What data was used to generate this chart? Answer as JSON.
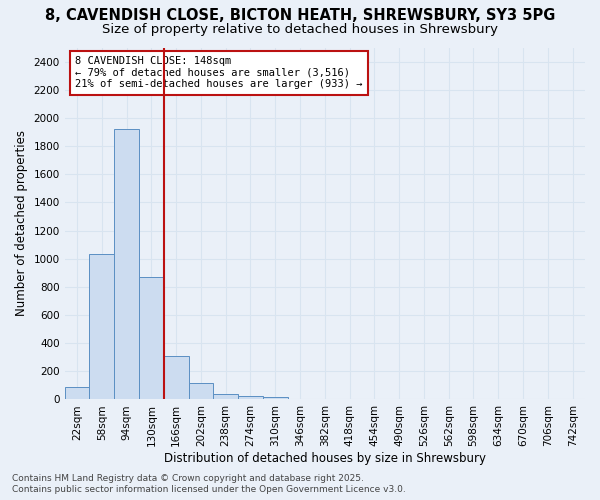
{
  "title_line1": "8, CAVENDISH CLOSE, BICTON HEATH, SHREWSBURY, SY3 5PG",
  "title_line2": "Size of property relative to detached houses in Shrewsbury",
  "xlabel": "Distribution of detached houses by size in Shrewsbury",
  "ylabel": "Number of detached properties",
  "bar_labels": [
    "22sqm",
    "58sqm",
    "94sqm",
    "130sqm",
    "166sqm",
    "202sqm",
    "238sqm",
    "274sqm",
    "310sqm",
    "346sqm",
    "382sqm",
    "418sqm",
    "454sqm",
    "490sqm",
    "526sqm",
    "562sqm",
    "598sqm",
    "634sqm",
    "670sqm",
    "706sqm",
    "742sqm"
  ],
  "bar_values": [
    90,
    1030,
    1920,
    870,
    310,
    120,
    40,
    25,
    15,
    5,
    0,
    0,
    0,
    0,
    0,
    0,
    0,
    0,
    0,
    0,
    0
  ],
  "bar_color": "#ccdcf0",
  "bar_edgecolor": "#5b8fc3",
  "vline_color": "#bb1111",
  "annotation_text": "8 CAVENDISH CLOSE: 148sqm\n← 79% of detached houses are smaller (3,516)\n21% of semi-detached houses are larger (933) →",
  "annotation_box_edgecolor": "#bb1111",
  "annotation_text_color": "#000000",
  "ylim": [
    0,
    2500
  ],
  "yticks": [
    0,
    200,
    400,
    600,
    800,
    1000,
    1200,
    1400,
    1600,
    1800,
    2000,
    2200,
    2400
  ],
  "footer_line1": "Contains HM Land Registry data © Crown copyright and database right 2025.",
  "footer_line2": "Contains public sector information licensed under the Open Government Licence v3.0.",
  "bg_color": "#eaf0f8",
  "plot_bg_color": "#eaf0f8",
  "grid_color": "#d8e4f0",
  "title1_fontsize": 10.5,
  "title2_fontsize": 9.5,
  "axis_label_fontsize": 8.5,
  "tick_fontsize": 7.5,
  "annotation_fontsize": 7.5,
  "footer_fontsize": 6.5
}
